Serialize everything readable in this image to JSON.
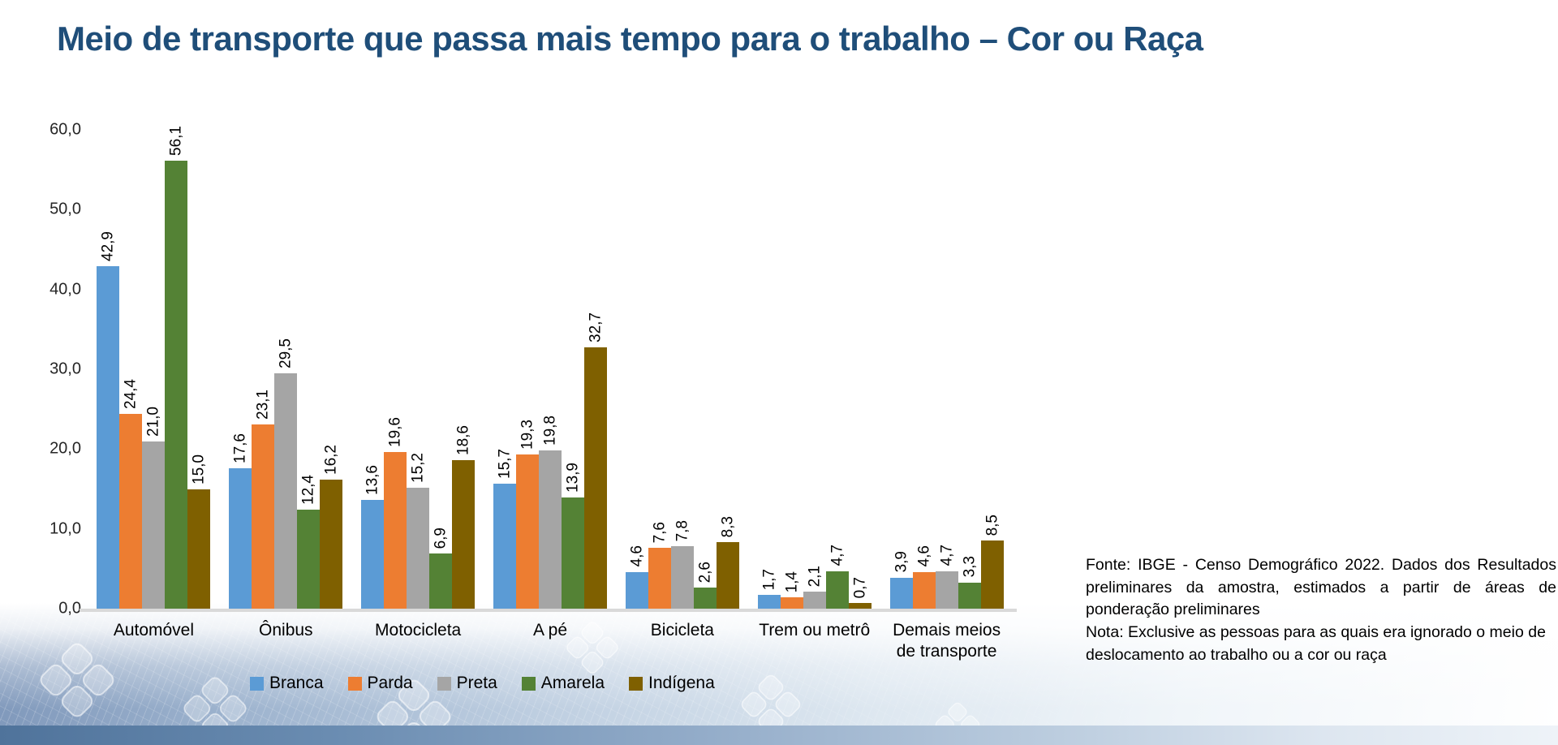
{
  "page": {
    "title": "Meio de transporte que passa mais tempo para o trabalho – Cor ou Raça"
  },
  "chart_data": {
    "type": "bar",
    "title": "Meio de transporte que passa mais tempo para o trabalho – Cor ou Raça",
    "categories": [
      {
        "label": "Automóvel",
        "slug": "automovel"
      },
      {
        "label": "Ônibus",
        "slug": "onibus"
      },
      {
        "label": "Motocicleta",
        "slug": "motocicleta"
      },
      {
        "label": "A pé",
        "slug": "a-pe"
      },
      {
        "label": "Bicicleta",
        "slug": "bicicleta"
      },
      {
        "label": "Trem ou metrô",
        "slug": "trem-ou-metro"
      },
      {
        "label": "Demais meios de transporte",
        "slug": "demais-meios-de-transporte"
      }
    ],
    "series": [
      {
        "name": "Branca",
        "slug": "branca",
        "color": "#5B9BD5",
        "values": [
          42.9,
          17.6,
          13.6,
          15.7,
          4.6,
          1.7,
          3.9
        ]
      },
      {
        "name": "Parda",
        "slug": "parda",
        "color": "#ED7D31",
        "values": [
          24.4,
          23.1,
          19.6,
          19.3,
          7.6,
          1.4,
          4.6
        ]
      },
      {
        "name": "Preta",
        "slug": "preta",
        "color": "#A5A5A5",
        "values": [
          21.0,
          29.5,
          15.2,
          19.8,
          7.8,
          2.1,
          4.7
        ]
      },
      {
        "name": "Amarela",
        "slug": "amarela",
        "color": "#548235",
        "values": [
          56.1,
          12.4,
          6.9,
          13.9,
          2.6,
          4.7,
          3.3
        ]
      },
      {
        "name": "Indígena",
        "slug": "indigena",
        "color": "#7F6000",
        "values": [
          15.0,
          16.2,
          18.6,
          32.7,
          8.3,
          0.7,
          8.5
        ]
      }
    ],
    "ylim": [
      0,
      60
    ],
    "ytick_step": 10,
    "ytick_labels": [
      "0,0",
      "10,0",
      "20,0",
      "30,0",
      "40,0",
      "50,0",
      "60,0"
    ],
    "decimal_separator": ",",
    "grid": false,
    "legend_position": "bottom",
    "data_labels": "rotated-90"
  },
  "notes": {
    "fonte": "Fonte: IBGE - Censo Demográfico 2022. Dados dos Resultados preliminares da amostra, estimados a partir de áreas de ponderação preliminares",
    "nota": "Nota: Exclusive as pessoas para as quais era ignorado o meio de deslocamento ao trabalho ou a cor ou raça"
  }
}
